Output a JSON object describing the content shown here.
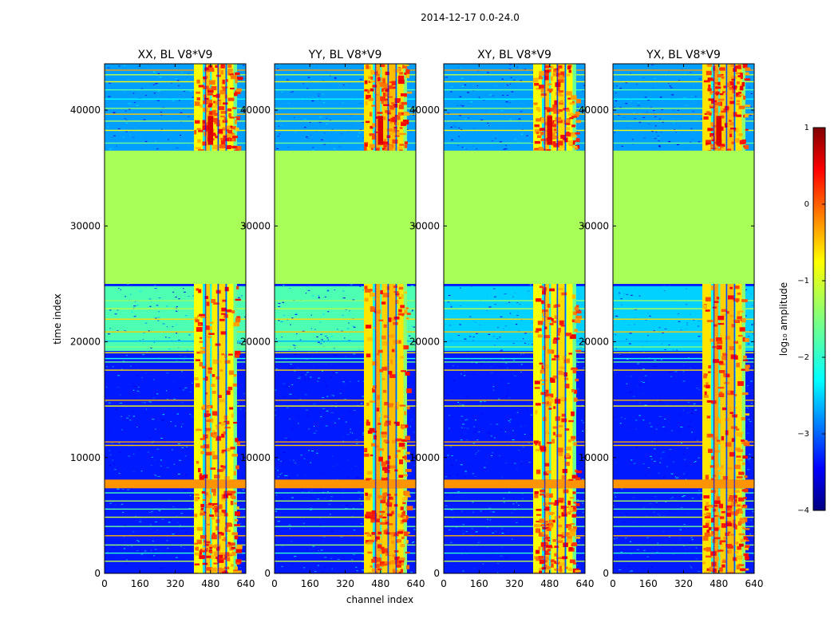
{
  "chart_data": {
    "type": "heatmap",
    "suptitle": "2014-12-17 0.0-24.0",
    "xlabel": "channel index",
    "ylabel": "time index",
    "xlim": [
      0,
      640
    ],
    "ylim": [
      0,
      44000
    ],
    "x_ticks": [
      0,
      160,
      320,
      480,
      640
    ],
    "y_ticks": [
      0,
      10000,
      20000,
      30000,
      40000
    ],
    "panels": [
      {
        "title": "XX, BL V8*V9",
        "polarization": "XX"
      },
      {
        "title": "YY, BL V8*V9",
        "polarization": "YY"
      },
      {
        "title": "XY, BL V8*V9",
        "polarization": "XY"
      },
      {
        "title": "YX, BL V8*V9",
        "polarization": "YX"
      }
    ],
    "flagged_time_range": [
      25000,
      36500
    ],
    "flagged_log_amplitude": -1.3,
    "active_channel_range": [
      405,
      600
    ],
    "colorbar": {
      "label": "log₁₀ amplitude",
      "range": [
        -4,
        1
      ],
      "ticks": [
        1,
        0,
        -1,
        -2,
        -3,
        -4
      ],
      "tick_labels": [
        "1",
        "0",
        "−1",
        "−2",
        "−3",
        "−4"
      ],
      "colormap": "jet"
    }
  }
}
